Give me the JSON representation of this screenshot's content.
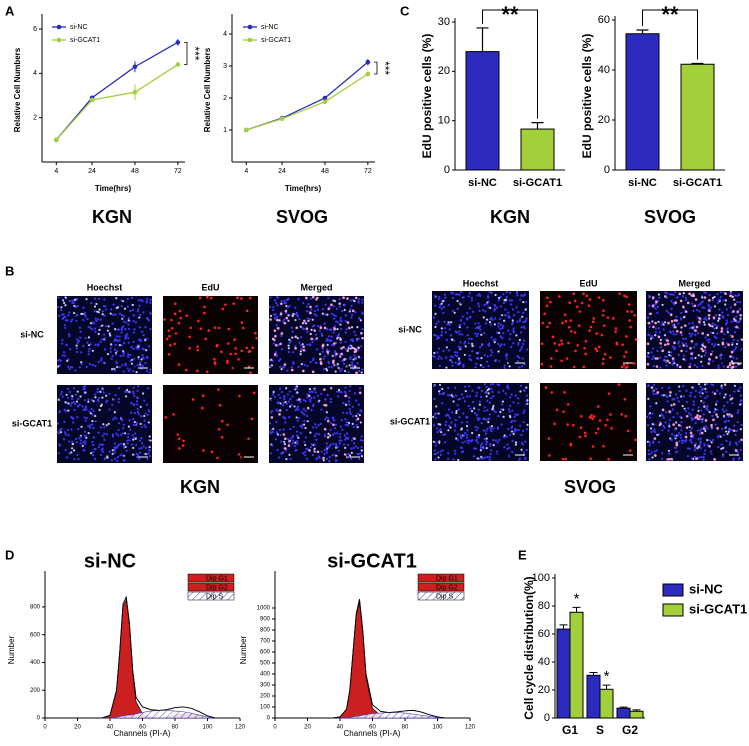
{
  "panel_labels": [
    "A",
    "B",
    "C",
    "D",
    "E"
  ],
  "chart_data": [
    {
      "type": "line",
      "subtitle": "KGN",
      "x": [
        4,
        24,
        48,
        72
      ],
      "xlim": [
        -4,
        76
      ],
      "xticks": [
        4,
        24,
        48,
        72
      ],
      "ylim": [
        0,
        6.5
      ],
      "yticks": [
        2,
        4,
        6
      ],
      "x_label": "Time(hrs)",
      "y_label": "Relative Cell Numbers",
      "legend": "upper left",
      "annotation": "***",
      "series": [
        {
          "name": "si-NC",
          "color": "#2b2bbf",
          "values": [
            1.0,
            2.9,
            4.3,
            5.4
          ],
          "errors": [
            0.05,
            0.1,
            0.25,
            0.15
          ]
        },
        {
          "name": "si-GCAT1",
          "color": "#a2d03a",
          "values": [
            1.0,
            2.8,
            3.15,
            4.4
          ],
          "errors": [
            0.05,
            0.1,
            0.35,
            0.1
          ]
        }
      ]
    },
    {
      "type": "line",
      "subtitle": "SVOG",
      "x": [
        4,
        24,
        48,
        72
      ],
      "xlim": [
        -4,
        76
      ],
      "xticks": [
        4,
        24,
        48,
        72
      ],
      "ylim": [
        0,
        4.5
      ],
      "yticks": [
        1,
        2,
        3,
        4
      ],
      "x_label": "Time(hrs)",
      "y_label": "Relative Cell Numbers",
      "legend": "upper left",
      "annotation": "***",
      "series": [
        {
          "name": "si-NC",
          "color": "#2b2bbf",
          "values": [
            1.0,
            1.37,
            2.0,
            3.12
          ],
          "errors": [
            0.02,
            0.05,
            0.03,
            0.1
          ]
        },
        {
          "name": "si-GCAT1",
          "color": "#a2d03a",
          "values": [
            1.0,
            1.35,
            1.88,
            2.75
          ],
          "errors": [
            0.02,
            0.05,
            0.03,
            0.08
          ]
        }
      ]
    },
    {
      "type": "bar",
      "subtitle": "KGN",
      "categories": [
        "si-NC",
        "si-GCAT1"
      ],
      "values": [
        24,
        8.3
      ],
      "errors": [
        4.8,
        1.3
      ],
      "colors": [
        "#2b2bbf",
        "#a2d03a"
      ],
      "ylim": [
        0,
        30
      ],
      "yticks": [
        0,
        10,
        20,
        30
      ],
      "y_label": "EdU positive cells (%)",
      "annotation": "**"
    },
    {
      "type": "bar",
      "subtitle": "SVOG",
      "categories": [
        "si-NC",
        "si-GCAT1"
      ],
      "values": [
        54.5,
        42.3
      ],
      "errors": [
        1.5,
        0.3
      ],
      "colors": [
        "#2b2bbf",
        "#a2d03a"
      ],
      "ylim": [
        0,
        60
      ],
      "yticks": [
        0,
        20,
        40,
        60
      ],
      "y_label": "EdU positive cells (%)",
      "annotation": "**"
    },
    {
      "type": "area",
      "title": "si-NC",
      "x": [
        35,
        40,
        44,
        46,
        48,
        50,
        52,
        54,
        56,
        60,
        65,
        70,
        75,
        80,
        85,
        90,
        95,
        100,
        105
      ],
      "xlim": [
        0,
        120
      ],
      "xticks": [
        0,
        20,
        40,
        60,
        80,
        100,
        120
      ],
      "ylim": [
        0,
        1030
      ],
      "yticks": [
        0,
        200,
        400,
        600,
        800
      ],
      "x_label": "Channels (PI-A)",
      "y_label": "Number",
      "legend": "upper right",
      "series": [
        {
          "color": "#000000",
          "values": [
            0,
            20,
            200,
            480,
            820,
            870,
            680,
            340,
            150,
            80,
            60,
            55,
            60,
            75,
            80,
            70,
            45,
            15,
            0
          ]
        },
        {
          "name": "Dip G1",
          "color": "#cc1f1f",
          "values": [
            0,
            18,
            190,
            460,
            800,
            850,
            660,
            320,
            120,
            30,
            5,
            0,
            0,
            0,
            0,
            0,
            0,
            0,
            0
          ]
        },
        {
          "name": "Dip G2",
          "color": "#cc1f1f",
          "values": [
            0,
            0,
            0,
            0,
            0,
            0,
            0,
            0,
            0,
            0,
            0,
            0,
            5,
            20,
            30,
            30,
            20,
            5,
            0
          ]
        },
        {
          "name": "Dip S",
          "color": "#3a3ac8",
          "hatch": true,
          "values": [
            0,
            0,
            5,
            10,
            15,
            20,
            20,
            25,
            30,
            40,
            50,
            55,
            55,
            50,
            45,
            35,
            20,
            8,
            0
          ]
        }
      ]
    },
    {
      "type": "area",
      "title": "si-GCAT1",
      "x": [
        35,
        40,
        44,
        46,
        48,
        50,
        52,
        54,
        56,
        60,
        65,
        70,
        75,
        80,
        85,
        90,
        95,
        100,
        105
      ],
      "xlim": [
        0,
        120
      ],
      "xticks": [
        0,
        20,
        40,
        60,
        80,
        100,
        120
      ],
      "ylim": [
        0,
        1300
      ],
      "yticks": [
        0,
        100,
        200,
        300,
        400,
        500,
        600,
        700,
        800,
        900,
        1000
      ],
      "x_label": "Channels (PI-A)",
      "y_label": "Number",
      "legend": "upper right",
      "series": [
        {
          "color": "#000000",
          "values": [
            0,
            10,
            80,
            250,
            600,
            950,
            1080,
            800,
            400,
            120,
            60,
            50,
            55,
            65,
            70,
            55,
            30,
            10,
            0
          ]
        },
        {
          "name": "Dip G1",
          "color": "#cc1f1f",
          "values": [
            0,
            10,
            75,
            240,
            580,
            930,
            1050,
            770,
            370,
            90,
            20,
            0,
            0,
            0,
            0,
            0,
            0,
            0,
            0
          ]
        },
        {
          "name": "Dip G2",
          "color": "#cc1f1f",
          "values": [
            0,
            0,
            0,
            0,
            0,
            0,
            0,
            0,
            0,
            0,
            0,
            0,
            3,
            10,
            15,
            12,
            6,
            2,
            0
          ]
        },
        {
          "name": "Dip S",
          "color": "#3a3ac8",
          "hatch": true,
          "values": [
            0,
            0,
            3,
            5,
            10,
            15,
            20,
            25,
            30,
            40,
            45,
            50,
            50,
            45,
            35,
            25,
            15,
            5,
            0
          ]
        }
      ]
    },
    {
      "type": "grouped_bar",
      "categories": [
        "G1",
        "S",
        "G2"
      ],
      "ylim": [
        0,
        100
      ],
      "yticks": [
        0,
        20,
        40,
        60,
        80,
        100
      ],
      "y_label": "Cell cycle distribution(%)",
      "legend": "right",
      "series": [
        {
          "name": "si-NC",
          "color": "#2b2bbf",
          "values": [
            63.5,
            30.5,
            7.0
          ],
          "errors": [
            3,
            2,
            0.8
          ]
        },
        {
          "name": "si-GCAT1",
          "color": "#a2d03a",
          "values": [
            75.5,
            20.5,
            4.8
          ],
          "errors": [
            3.5,
            3,
            1
          ],
          "value_annotations": [
            "*",
            "*",
            null
          ]
        }
      ]
    }
  ],
  "panel_b": {
    "groups": [
      {
        "title": "KGN",
        "columns": [
          "Hoechst",
          "EdU",
          "Merged"
        ],
        "rows": [
          "si-NC",
          "si-GCAT1"
        ],
        "scale_bar": "50 μm"
      },
      {
        "title": "SVOG",
        "columns": [
          "Hoechst",
          "EdU",
          "Merged"
        ],
        "rows": [
          "si-NC",
          "si-GCAT1"
        ],
        "scale_bar": "100 μm"
      }
    ]
  }
}
